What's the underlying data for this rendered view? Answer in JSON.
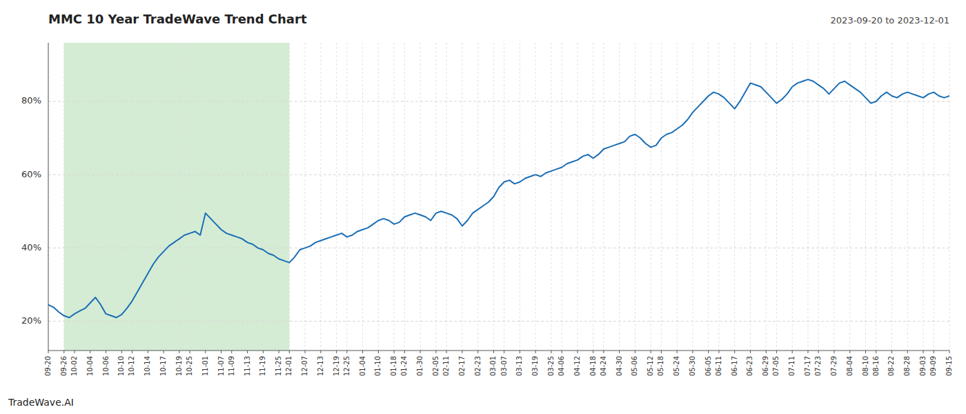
{
  "chart_data": {
    "type": "line",
    "title": "MMC 10 Year TradeWave Trend Chart",
    "subtitle": "2023-09-20 to 2023-12-01",
    "annotations": [
      "TradeWave.AI"
    ],
    "categories": [
      "09-20",
      null,
      null,
      "09-26",
      null,
      "10-02",
      null,
      null,
      "10-04",
      null,
      null,
      "10-06",
      null,
      null,
      "10-10",
      null,
      "10-12",
      null,
      null,
      "10-14",
      null,
      null,
      "10-17",
      null,
      null,
      "10-19",
      null,
      "10-25",
      null,
      null,
      "11-01",
      null,
      null,
      "11-07",
      null,
      "11-09",
      null,
      null,
      "11-13",
      null,
      null,
      "11-19",
      null,
      null,
      "11-25",
      null,
      "12-01",
      null,
      null,
      "12-07",
      null,
      null,
      "12-13",
      null,
      null,
      "12-19",
      null,
      "12-25",
      null,
      null,
      "01-04",
      null,
      null,
      "01-10",
      null,
      null,
      "01-18",
      null,
      "01-24",
      null,
      null,
      "01-30",
      null,
      null,
      "02-05",
      null,
      "02-11",
      null,
      null,
      "02-17",
      null,
      null,
      "02-23",
      null,
      null,
      "03-01",
      null,
      "03-07",
      null,
      null,
      "03-13",
      null,
      null,
      "03-19",
      null,
      null,
      "03-25",
      null,
      "04-06",
      null,
      null,
      "04-12",
      null,
      null,
      "04-18",
      null,
      "04-24",
      null,
      null,
      "04-30",
      null,
      null,
      "05-06",
      null,
      null,
      "05-12",
      null,
      "05-18",
      null,
      null,
      "05-24",
      null,
      null,
      "05-30",
      null,
      null,
      "06-05",
      null,
      "06-11",
      null,
      null,
      "06-17",
      null,
      null,
      "06-23",
      null,
      null,
      "06-29",
      null,
      "07-05",
      null,
      null,
      "07-11",
      null,
      null,
      "07-17",
      null,
      "07-23",
      null,
      null,
      "07-29",
      null,
      null,
      "08-04",
      null,
      null,
      "08-10",
      null,
      "08-16",
      null,
      null,
      "08-22",
      null,
      null,
      "08-28",
      null,
      null,
      "09-03",
      null,
      "09-09",
      null,
      null,
      "09-15"
    ],
    "series": [
      {
        "color": "#1a6db5",
        "values": [
          24.5,
          23.8,
          22.5,
          21.5,
          21.0,
          22.0,
          22.8,
          23.5,
          25.0,
          26.5,
          24.5,
          22.0,
          21.5,
          21.0,
          21.8,
          23.5,
          25.5,
          28.0,
          30.5,
          33.0,
          35.5,
          37.5,
          39.0,
          40.5,
          41.5,
          42.5,
          43.5,
          44.0,
          44.5,
          43.5,
          49.5,
          48.0,
          46.5,
          45.0,
          44.0,
          43.5,
          43.0,
          42.5,
          41.5,
          41.0,
          40.0,
          39.5,
          38.5,
          38.0,
          37.0,
          36.5,
          36.0,
          37.5,
          39.5,
          40.0,
          40.5,
          41.5,
          42.0,
          42.5,
          43.0,
          43.5,
          44.0,
          43.0,
          43.5,
          44.5,
          45.0,
          45.5,
          46.5,
          47.5,
          48.0,
          47.5,
          46.5,
          47.0,
          48.5,
          49.0,
          49.5,
          49.0,
          48.5,
          47.5,
          49.5,
          50.0,
          49.5,
          49.0,
          48.0,
          46.0,
          47.5,
          49.5,
          50.5,
          51.5,
          52.5,
          54.0,
          56.5,
          58.0,
          58.5,
          57.5,
          58.0,
          59.0,
          59.5,
          60.0,
          59.5,
          60.5,
          61.0,
          61.5,
          62.0,
          63.0,
          63.5,
          64.0,
          65.0,
          65.5,
          64.5,
          65.5,
          67.0,
          67.5,
          68.0,
          68.5,
          69.0,
          70.5,
          71.0,
          70.0,
          68.5,
          67.5,
          68.0,
          70.0,
          71.0,
          71.5,
          72.5,
          73.5,
          75.0,
          77.0,
          78.5,
          80.0,
          81.5,
          82.5,
          82.0,
          81.0,
          79.5,
          78.0,
          80.0,
          82.5,
          85.0,
          84.5,
          84.0,
          82.5,
          81.0,
          79.5,
          80.5,
          82.0,
          84.0,
          85.0,
          85.5,
          86.0,
          85.5,
          84.5,
          83.5,
          82.0,
          83.5,
          85.0,
          85.5,
          84.5,
          83.5,
          82.5,
          81.0,
          79.5,
          80.0,
          81.5,
          82.5,
          81.5,
          81.0,
          82.0,
          82.5,
          82.0,
          81.5,
          81.0,
          82.0,
          82.5,
          81.5,
          81.0,
          81.5
        ]
      }
    ],
    "highlight": {
      "from": "09-26",
      "to": "12-01",
      "color": "#d4ecd4"
    },
    "ylim": [
      12,
      96
    ],
    "yticks": [
      {
        "value": 20,
        "label": "20%"
      },
      {
        "value": 40,
        "label": "40%"
      },
      {
        "value": 60,
        "label": "60%"
      },
      {
        "value": 80,
        "label": "80%"
      }
    ],
    "grid": true
  }
}
